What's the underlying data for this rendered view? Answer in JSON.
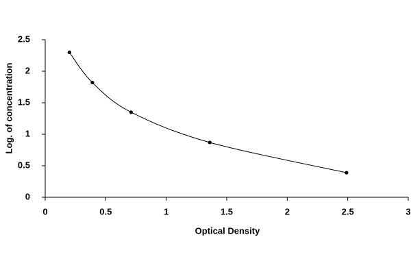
{
  "chart_data": {
    "type": "line",
    "smooth": true,
    "markers": true,
    "x_label": "Optical Density",
    "y_label": "Log. of concentration",
    "x": [
      0.2,
      0.39,
      0.71,
      1.36,
      2.49
    ],
    "series": [
      {
        "color": "#000000",
        "values": [
          2.3,
          1.82,
          1.35,
          0.87,
          0.39
        ]
      }
    ],
    "xlim": [
      0,
      3
    ],
    "xticks": [
      0,
      0.5,
      1,
      1.5,
      2,
      2.5,
      3
    ],
    "ylim": [
      0,
      2.5
    ],
    "yticks": [
      0,
      0.5,
      1,
      1.5,
      2,
      2.5
    ],
    "grid": false
  }
}
